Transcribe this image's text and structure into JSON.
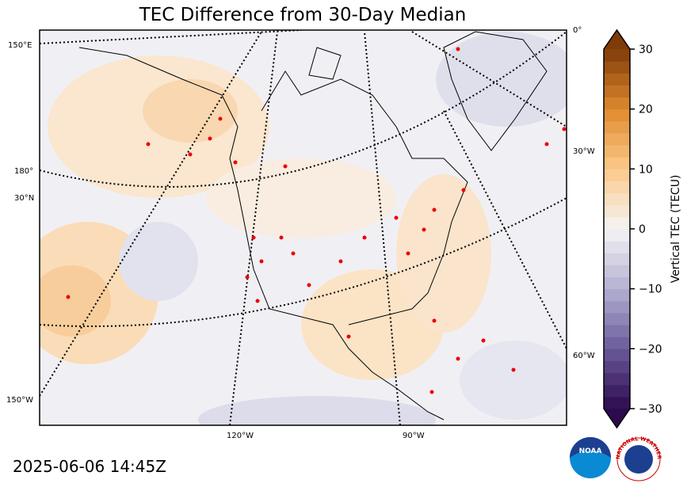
{
  "title": "TEC Difference from 30-Day Median",
  "timestamp": "2025-06-06 14:45Z",
  "map": {
    "graticule_labels": [
      "150°E",
      "180°",
      "30°N",
      "150°W",
      "120°W",
      "90°W",
      "0°",
      "30°W",
      "60°W"
    ]
  },
  "colorbar": {
    "label": "Vertical TEC (TECU)",
    "lim": [
      -30,
      30
    ],
    "levels": 30,
    "colors": [
      "#2d0a4e",
      "#6a5a9a",
      "#b3b0d2",
      "#f4f4f4",
      "#fcc98b",
      "#e08a2e",
      "#7f3b08"
    ],
    "ticks": [
      30,
      20,
      10,
      0,
      {
        "value": -10,
        "label": "−10"
      },
      {
        "value": -20,
        "label": "−20"
      },
      {
        "value": -30,
        "label": "−30"
      }
    ]
  },
  "logos": {
    "noaa": "NOAA",
    "nws": "NATIONAL WEATHER SERVICE"
  }
}
